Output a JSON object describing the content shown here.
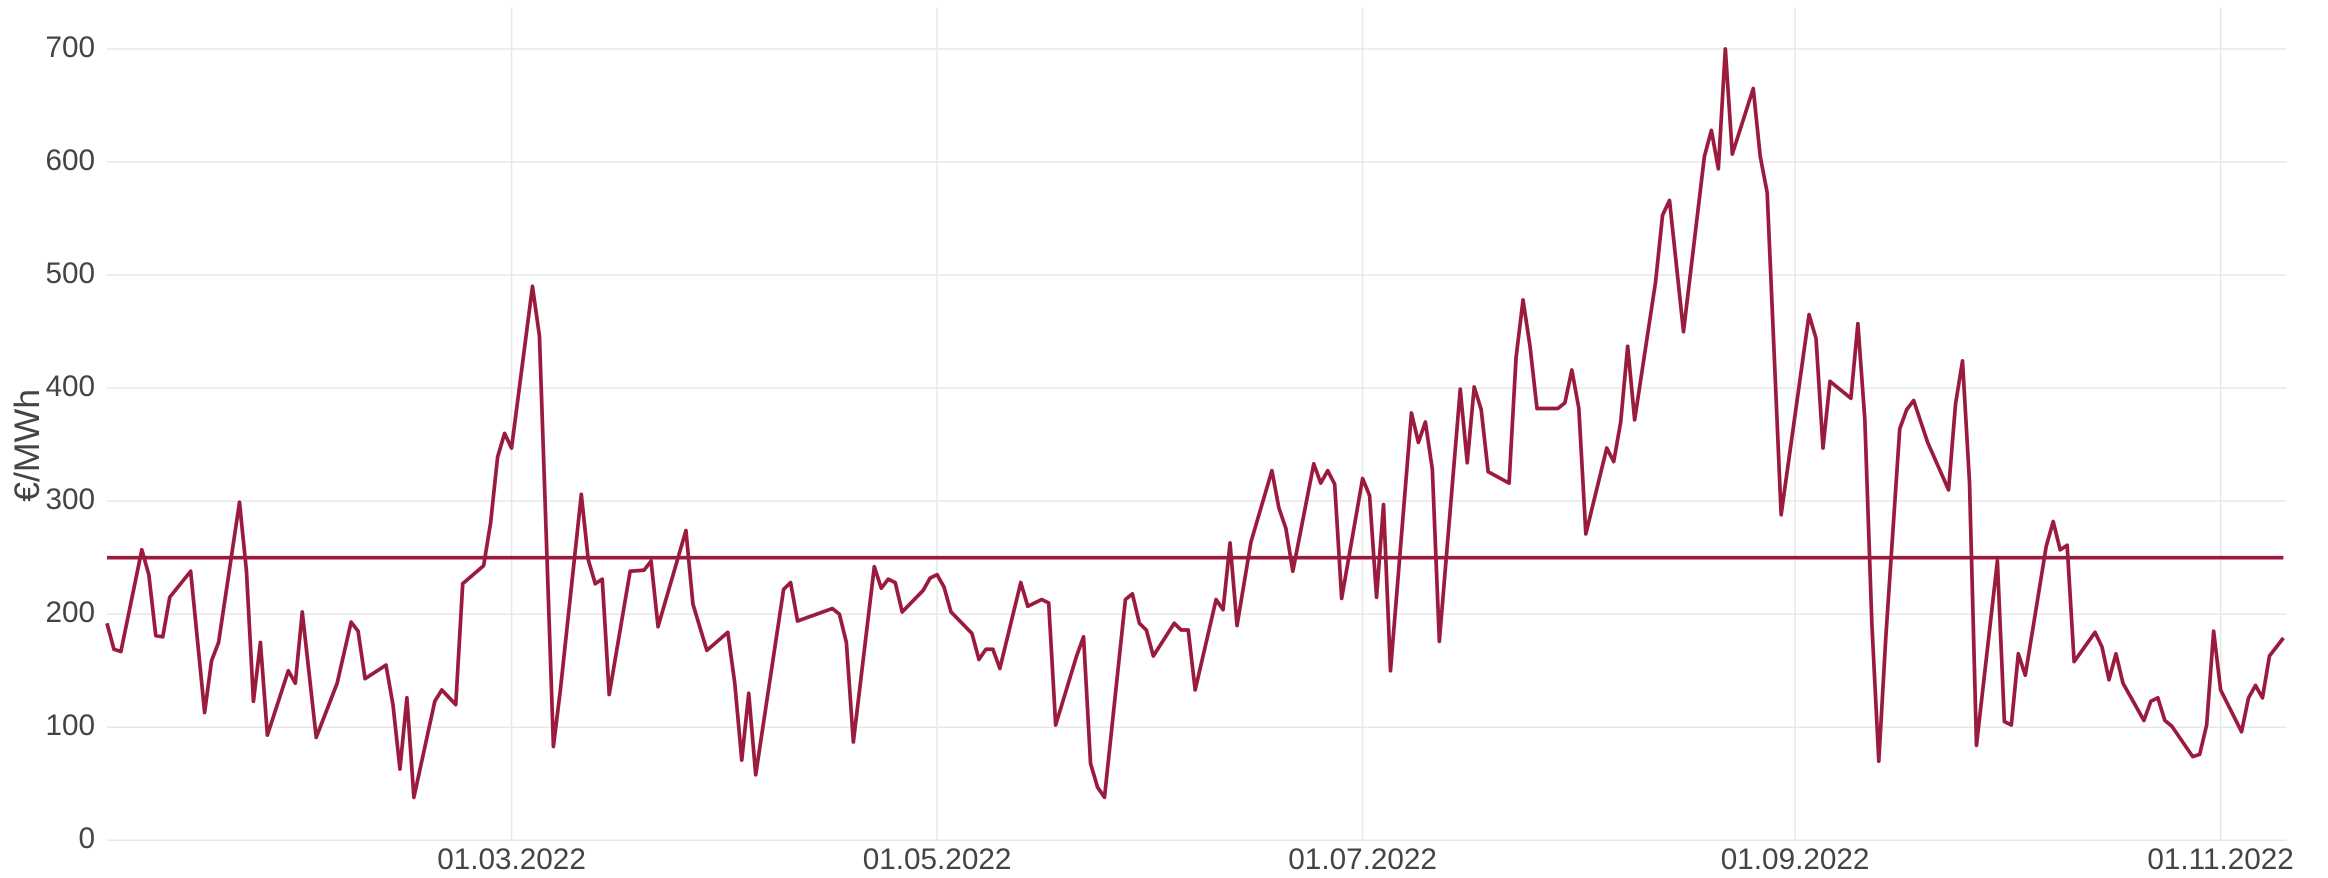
{
  "chart_data": {
    "type": "line",
    "y_label": "€/MWh",
    "x": [
      "2022-01-02",
      "2022-01-03",
      "2022-01-04",
      "2022-01-07",
      "2022-01-08",
      "2022-01-09",
      "2022-01-10",
      "2022-01-11",
      "2022-01-14",
      "2022-01-16",
      "2022-01-17",
      "2022-01-18",
      "2022-01-21",
      "2022-01-22",
      "2022-01-23",
      "2022-01-24",
      "2022-01-25",
      "2022-01-28",
      "2022-01-29",
      "2022-01-30",
      "2022-02-01",
      "2022-02-04",
      "2022-02-06",
      "2022-02-07",
      "2022-02-08",
      "2022-02-11",
      "2022-02-12",
      "2022-02-13",
      "2022-02-14",
      "2022-02-15",
      "2022-02-18",
      "2022-02-19",
      "2022-02-21",
      "2022-02-22",
      "2022-02-25",
      "2022-02-26",
      "2022-02-27",
      "2022-02-28",
      "2022-03-01",
      "2022-03-04",
      "2022-03-05",
      "2022-03-07",
      "2022-03-08",
      "2022-03-11",
      "2022-03-12",
      "2022-03-13",
      "2022-03-14",
      "2022-03-15",
      "2022-03-18",
      "2022-03-20",
      "2022-03-21",
      "2022-03-22",
      "2022-03-26",
      "2022-03-27",
      "2022-03-29",
      "2022-04-01",
      "2022-04-02",
      "2022-04-03",
      "2022-04-04",
      "2022-04-05",
      "2022-04-09",
      "2022-04-10",
      "2022-04-11",
      "2022-04-16",
      "2022-04-17",
      "2022-04-18",
      "2022-04-19",
      "2022-04-22",
      "2022-04-23",
      "2022-04-24",
      "2022-04-25",
      "2022-04-26",
      "2022-04-29",
      "2022-04-30",
      "2022-05-01",
      "2022-05-02",
      "2022-05-03",
      "2022-05-06",
      "2022-05-07",
      "2022-05-08",
      "2022-05-09",
      "2022-05-10",
      "2022-05-13",
      "2022-05-14",
      "2022-05-16",
      "2022-05-17",
      "2022-05-18",
      "2022-05-21",
      "2022-05-22",
      "2022-05-23",
      "2022-05-24",
      "2022-05-25",
      "2022-05-28",
      "2022-05-29",
      "2022-05-30",
      "2022-05-31",
      "2022-06-01",
      "2022-06-04",
      "2022-06-05",
      "2022-06-06",
      "2022-06-07",
      "2022-06-10",
      "2022-06-11",
      "2022-06-12",
      "2022-06-13",
      "2022-06-15",
      "2022-06-18",
      "2022-06-19",
      "2022-06-20",
      "2022-06-21",
      "2022-06-24",
      "2022-06-25",
      "2022-06-26",
      "2022-06-27",
      "2022-06-28",
      "2022-07-01",
      "2022-07-02",
      "2022-07-03",
      "2022-07-04",
      "2022-07-05",
      "2022-07-08",
      "2022-07-09",
      "2022-07-10",
      "2022-07-11",
      "2022-07-12",
      "2022-07-15",
      "2022-07-16",
      "2022-07-17",
      "2022-07-18",
      "2022-07-19",
      "2022-07-22",
      "2022-07-23",
      "2022-07-24",
      "2022-07-25",
      "2022-07-26",
      "2022-07-29",
      "2022-07-30",
      "2022-07-31",
      "2022-08-01",
      "2022-08-02",
      "2022-08-05",
      "2022-08-06",
      "2022-08-07",
      "2022-08-08",
      "2022-08-09",
      "2022-08-12",
      "2022-08-13",
      "2022-08-14",
      "2022-08-16",
      "2022-08-19",
      "2022-08-20",
      "2022-08-21",
      "2022-08-22",
      "2022-08-23",
      "2022-08-26",
      "2022-08-27",
      "2022-08-28",
      "2022-08-30",
      "2022-09-03",
      "2022-09-04",
      "2022-09-05",
      "2022-09-06",
      "2022-09-09",
      "2022-09-10",
      "2022-09-11",
      "2022-09-12",
      "2022-09-13",
      "2022-09-14",
      "2022-09-16",
      "2022-09-17",
      "2022-09-18",
      "2022-09-20",
      "2022-09-23",
      "2022-09-24",
      "2022-09-25",
      "2022-09-26",
      "2022-09-27",
      "2022-09-30",
      "2022-10-01",
      "2022-10-02",
      "2022-10-03",
      "2022-10-04",
      "2022-10-07",
      "2022-10-08",
      "2022-10-09",
      "2022-10-10",
      "2022-10-11",
      "2022-10-14",
      "2022-10-15",
      "2022-10-16",
      "2022-10-17",
      "2022-10-18",
      "2022-10-21",
      "2022-10-22",
      "2022-10-23",
      "2022-10-24",
      "2022-10-25",
      "2022-10-28",
      "2022-10-29",
      "2022-10-30",
      "2022-10-31",
      "2022-11-01",
      "2022-11-04",
      "2022-11-05",
      "2022-11-06",
      "2022-11-07",
      "2022-11-08",
      "2022-11-10"
    ],
    "values": [
      192,
      169,
      167,
      257,
      235,
      181,
      180,
      215,
      238,
      113,
      159,
      175,
      299,
      238,
      123,
      175,
      93,
      150,
      139,
      202,
      91,
      139,
      193,
      185,
      143,
      155,
      120,
      63,
      126,
      38,
      123,
      133,
      120,
      227,
      243,
      281,
      339,
      360,
      347,
      490,
      446,
      83,
      133,
      306,
      248,
      227,
      231,
      129,
      238,
      239,
      247,
      189,
      274,
      209,
      168,
      184,
      139,
      71,
      130,
      58,
      222,
      228,
      194,
      205,
      200,
      175,
      87,
      242,
      223,
      231,
      228,
      202,
      221,
      232,
      235,
      224,
      202,
      183,
      160,
      169,
      169,
      152,
      228,
      207,
      213,
      210,
      102,
      163,
      180,
      68,
      47,
      38,
      213,
      218,
      192,
      186,
      163,
      192,
      186,
      186,
      133,
      213,
      204,
      263,
      190,
      264,
      327,
      294,
      276,
      238,
      333,
      316,
      327,
      315,
      214,
      320,
      305,
      215,
      297,
      150,
      378,
      352,
      370,
      328,
      176,
      399,
      334,
      401,
      381,
      326,
      316,
      427,
      478,
      437,
      382,
      382,
      387,
      416,
      382,
      271,
      347,
      335,
      370,
      437,
      372,
      494,
      553,
      566,
      450,
      605,
      628,
      594,
      700,
      607,
      665,
      605,
      573,
      288,
      465,
      444,
      347,
      406,
      391,
      457,
      372,
      192,
      70,
      179,
      364,
      381,
      389,
      352,
      310,
      386,
      424,
      317,
      84,
      247,
      105,
      102,
      165,
      146,
      260,
      282,
      257,
      261,
      158,
      184,
      171,
      142,
      165,
      139,
      106,
      123,
      126,
      106,
      101,
      74,
      76,
      102,
      185,
      133,
      96,
      126,
      137,
      126,
      163,
      179
    ],
    "color": "#9b1b3e",
    "hline": 250,
    "xlim": [
      "2022-01-02",
      "2022-11-10"
    ],
    "xticks": [
      {
        "value": "2022-03-01",
        "label": "01.03.2022"
      },
      {
        "value": "2022-05-01",
        "label": "01.05.2022"
      },
      {
        "value": "2022-07-01",
        "label": "01.07.2022"
      },
      {
        "value": "2022-09-01",
        "label": "01.09.2022"
      },
      {
        "value": "2022-11-01",
        "label": "01.11.2022"
      }
    ],
    "ylim": [
      0,
      700
    ],
    "yticks": [
      0,
      100,
      200,
      300,
      400,
      500,
      600,
      700
    ],
    "grid": true
  }
}
